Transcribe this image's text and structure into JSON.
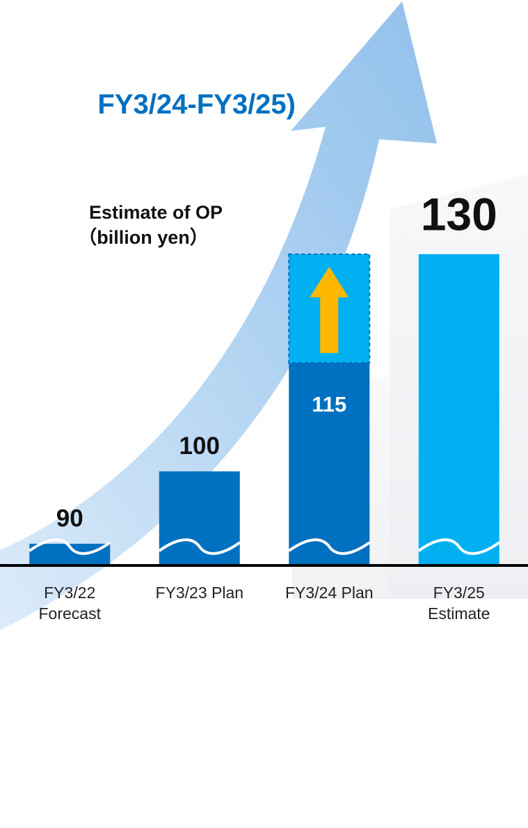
{
  "chart_data": {
    "type": "bar",
    "title": "FY3/24-FY3/25)",
    "annotation": [
      "Estimate of OP",
      "（billion yen）"
    ],
    "categories": [
      "FY3/22 Forecast",
      "FY3/23 Plan",
      "FY3/24 Plan",
      "FY3/25 Estimate"
    ],
    "values": [
      90,
      100,
      115,
      130
    ],
    "colors": [
      "#0070c0",
      "#0070c0",
      "#0070c0",
      "#00b0f0"
    ],
    "ylim": [
      87,
      135
    ]
  }
}
